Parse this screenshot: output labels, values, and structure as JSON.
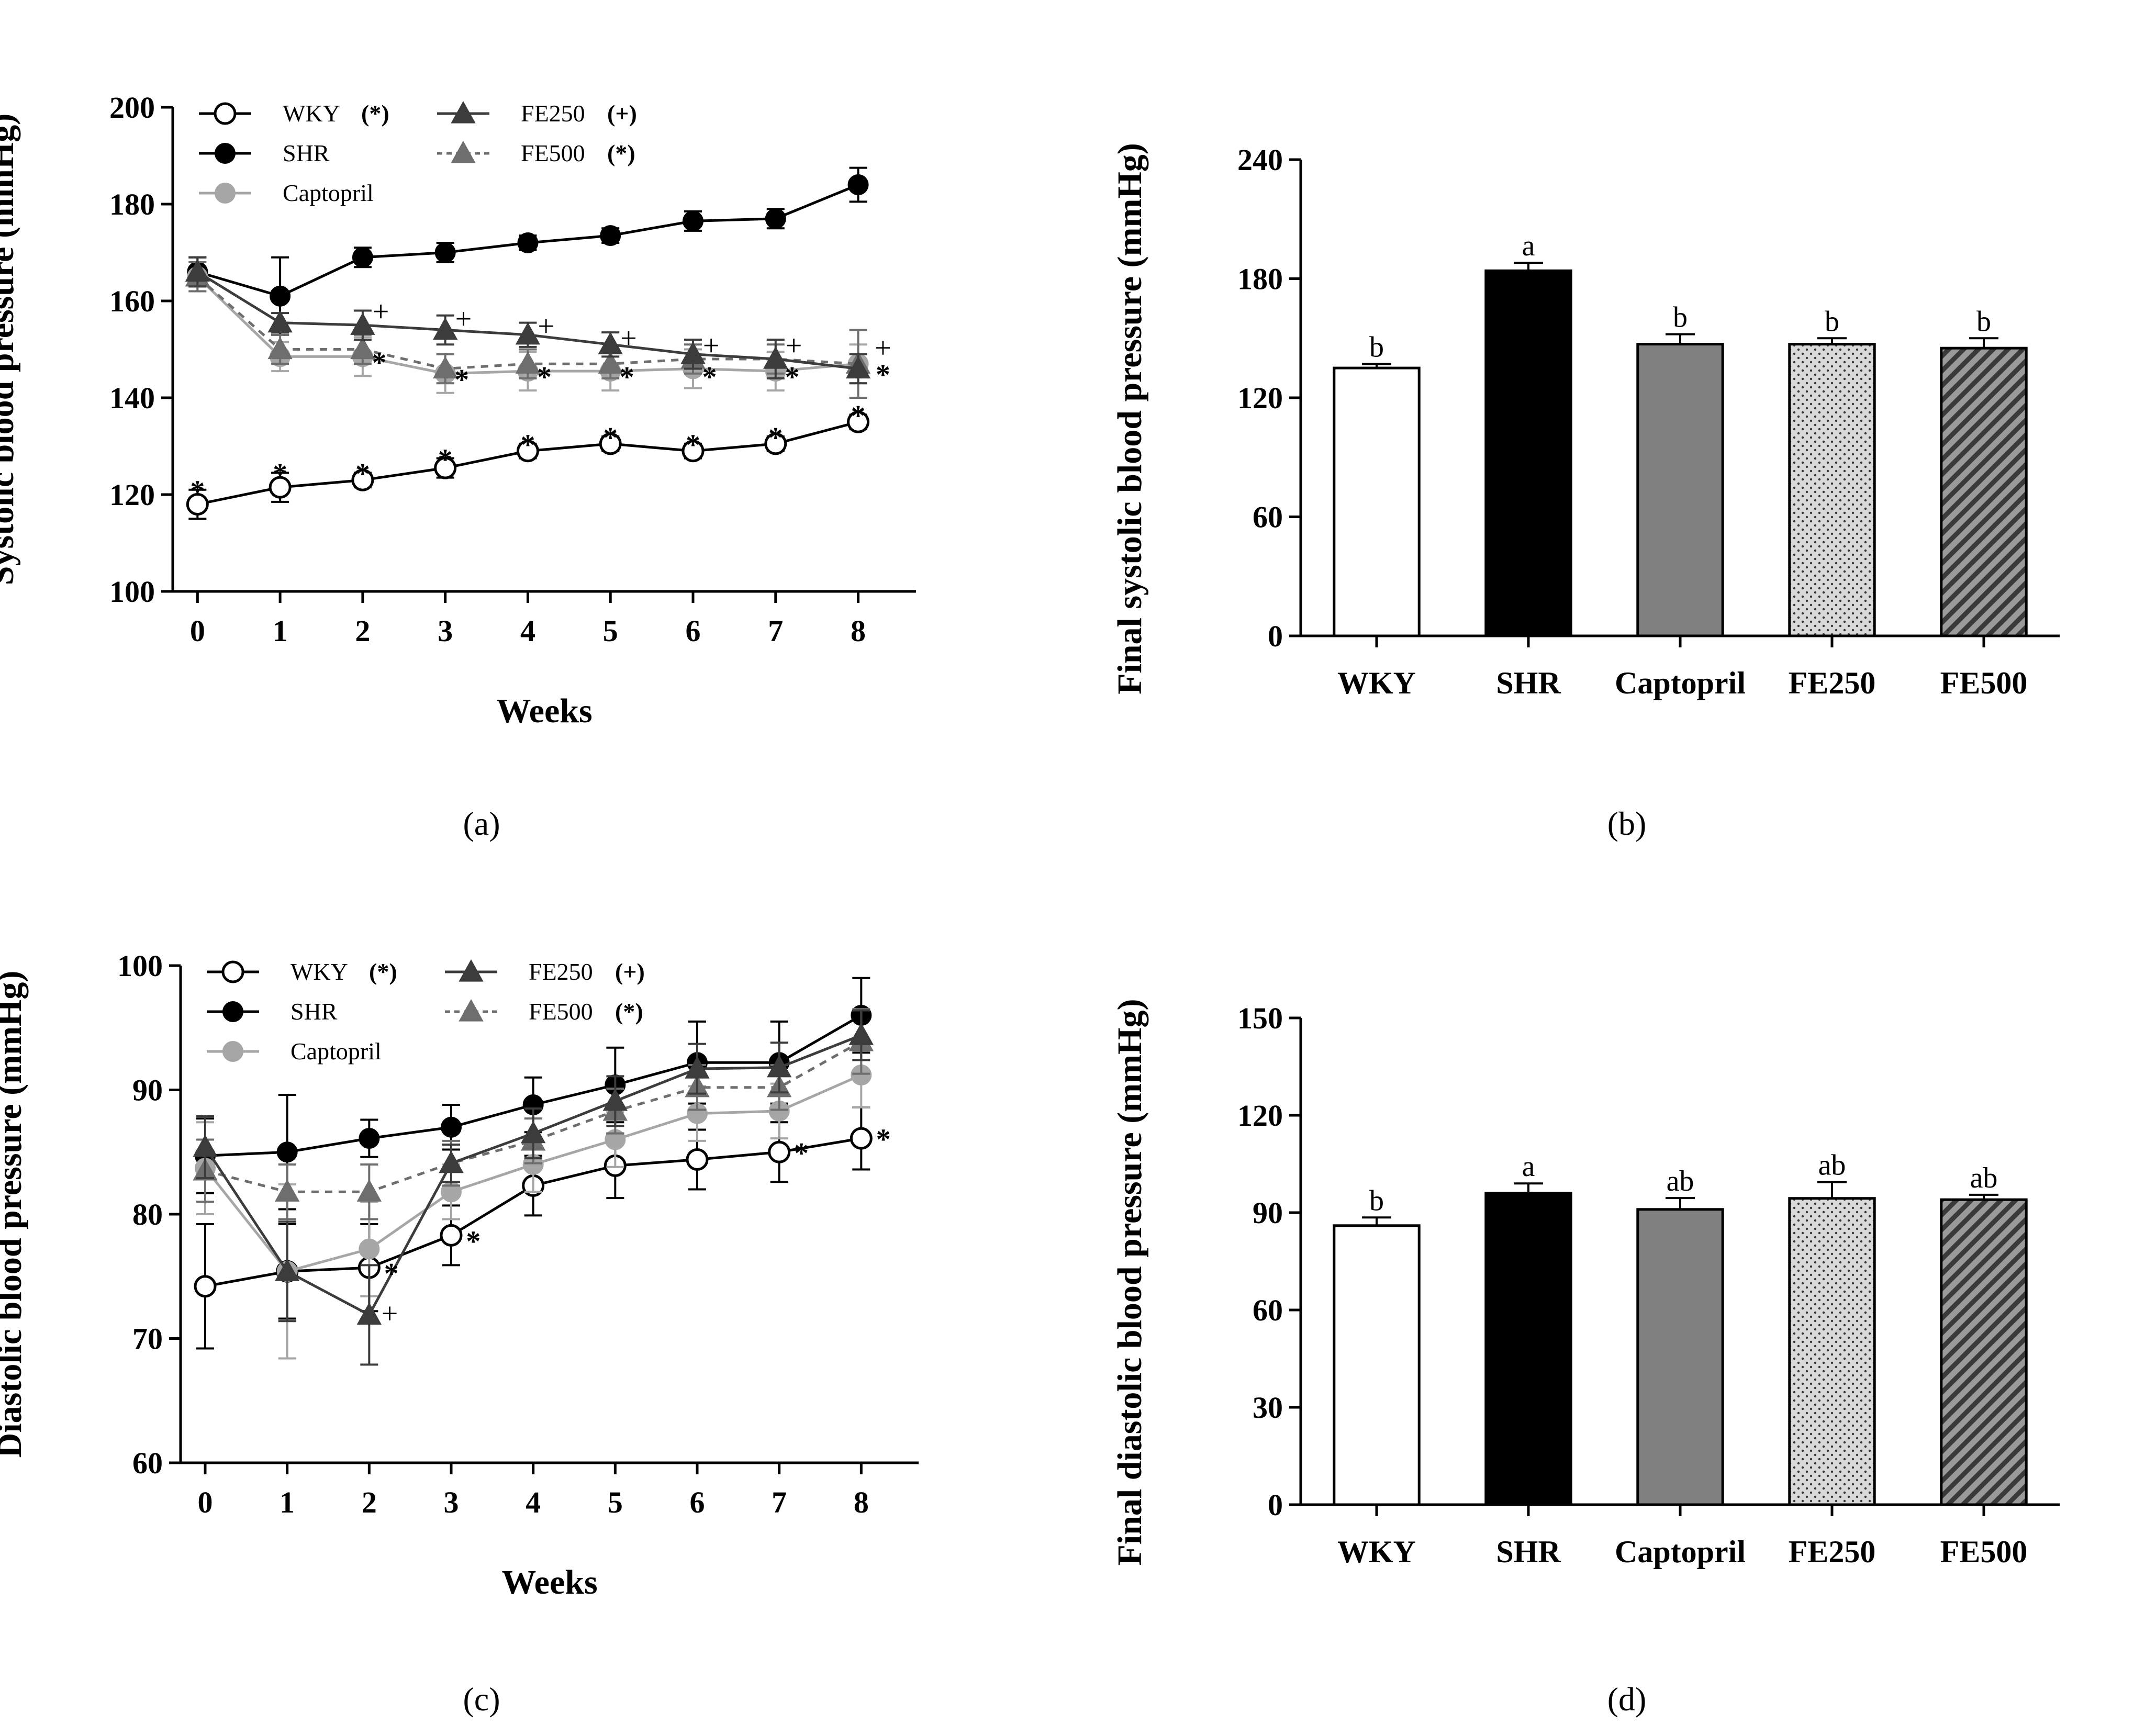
{
  "colors": {
    "WKY": "#000000",
    "SHR": "#000000",
    "Captopril": "#a6a6a6",
    "FE250": "#3c3c3c",
    "FE500": "#6e6e6e"
  },
  "chart_data": [
    {
      "panel": "a",
      "type": "line",
      "caption": "(a)",
      "xlabel": "Weeks",
      "ylabel": "Systolic blood pressure (mmHg)",
      "x": [
        0,
        1,
        2,
        3,
        4,
        5,
        6,
        7,
        8
      ],
      "xlim": [
        -0.3,
        8.7
      ],
      "ylim": [
        100,
        200
      ],
      "yticks": [
        100,
        120,
        140,
        160,
        180,
        200
      ],
      "grid": false,
      "legend_position": "top-left",
      "series": [
        {
          "name": "WKY",
          "key": "WKY",
          "legend_sig": "(*)",
          "marker": "circle-open",
          "dash": false,
          "values": [
            118,
            121.5,
            123,
            125.5,
            129,
            130.5,
            129,
            130.5,
            135
          ],
          "err": [
            3,
            3,
            1.5,
            2,
            1.5,
            1.5,
            1.5,
            1.5,
            1.5
          ]
        },
        {
          "name": "SHR",
          "key": "SHR",
          "legend_sig": "",
          "marker": "circle-filled",
          "dash": false,
          "values": [
            166,
            161,
            169,
            170,
            172,
            173.5,
            176.5,
            177,
            184
          ],
          "err": [
            3,
            8,
            2,
            2,
            1.5,
            1.5,
            2,
            2,
            3.5
          ]
        },
        {
          "name": "Captopril",
          "key": "Captopril",
          "legend_sig": "",
          "marker": "circle-filled",
          "dash": false,
          "values": [
            165,
            148.5,
            148.5,
            145,
            145.5,
            145.5,
            146,
            145.5,
            147
          ],
          "err": [
            3,
            3,
            4,
            4,
            4,
            4,
            4,
            4,
            4
          ]
        },
        {
          "name": "FE250",
          "key": "FE250",
          "legend_sig": "(+)",
          "marker": "triangle",
          "dash": false,
          "values": [
            166,
            155.5,
            155,
            154,
            153,
            151,
            149,
            148,
            146
          ],
          "err": [
            3,
            2,
            3,
            3,
            2.5,
            2.5,
            3,
            4,
            3
          ]
        },
        {
          "name": "FE500",
          "key": "FE500",
          "legend_sig": "(*)",
          "marker": "triangle",
          "dash": true,
          "values": [
            165,
            150,
            150,
            146,
            147,
            147,
            148,
            148,
            147
          ],
          "err": [
            3,
            3,
            3,
            3,
            3,
            3,
            3,
            3,
            7
          ]
        }
      ],
      "annotations": [
        {
          "symbol": "*",
          "series": "WKY",
          "x": 0,
          "y": 122,
          "dx": 0,
          "color": "#000000"
        },
        {
          "symbol": "*",
          "series": "WKY",
          "x": 1,
          "y": 125.5,
          "dx": 0,
          "color": "#000000"
        },
        {
          "symbol": "*",
          "series": "WKY",
          "x": 2,
          "y": 125.5,
          "dx": 0,
          "color": "#000000"
        },
        {
          "symbol": "*",
          "series": "WKY",
          "x": 3,
          "y": 128.5,
          "dx": 0,
          "color": "#000000"
        },
        {
          "symbol": "*",
          "series": "WKY",
          "x": 4,
          "y": 131.5,
          "dx": 0,
          "color": "#000000"
        },
        {
          "symbol": "*",
          "series": "WKY",
          "x": 5,
          "y": 133,
          "dx": 0,
          "color": "#000000"
        },
        {
          "symbol": "*",
          "series": "WKY",
          "x": 6,
          "y": 131.5,
          "dx": 0,
          "color": "#000000"
        },
        {
          "symbol": "*",
          "series": "WKY",
          "x": 7,
          "y": 133,
          "dx": 0,
          "color": "#000000"
        },
        {
          "symbol": "*",
          "series": "WKY",
          "x": 8,
          "y": 137.5,
          "dx": 0,
          "color": "#000000"
        },
        {
          "symbol": "+",
          "series": "FE250",
          "x": 2,
          "y": 157.5,
          "dx": 0.22,
          "color": "#000000"
        },
        {
          "symbol": "+",
          "series": "FE250",
          "x": 3,
          "y": 156,
          "dx": 0.22,
          "color": "#000000"
        },
        {
          "symbol": "+",
          "series": "FE250",
          "x": 4,
          "y": 154.5,
          "dx": 0.22,
          "color": "#000000"
        },
        {
          "symbol": "+",
          "series": "FE250",
          "x": 5,
          "y": 152,
          "dx": 0.22,
          "color": "#000000"
        },
        {
          "symbol": "+",
          "series": "FE250",
          "x": 6,
          "y": 150.5,
          "dx": 0.22,
          "color": "#000000"
        },
        {
          "symbol": "+",
          "series": "FE250",
          "x": 7,
          "y": 150.5,
          "dx": 0.22,
          "color": "#000000"
        },
        {
          "symbol": "+",
          "series": "FE250",
          "x": 8,
          "y": 150,
          "dx": 0.3,
          "color": "#000000"
        },
        {
          "symbol": "*",
          "series": "FE500",
          "x": 2,
          "y": 148.5,
          "dx": 0.2,
          "color": "#6e6e6e"
        },
        {
          "symbol": "*",
          "series": "FE500",
          "x": 3,
          "y": 145,
          "dx": 0.2,
          "color": "#6e6e6e"
        },
        {
          "symbol": "*",
          "series": "FE500",
          "x": 4,
          "y": 145.5,
          "dx": 0.2,
          "color": "#6e6e6e"
        },
        {
          "symbol": "*",
          "series": "FE500",
          "x": 5,
          "y": 145.5,
          "dx": 0.2,
          "color": "#6e6e6e"
        },
        {
          "symbol": "*",
          "series": "FE500",
          "x": 6,
          "y": 145.5,
          "dx": 0.2,
          "color": "#6e6e6e"
        },
        {
          "symbol": "*",
          "series": "FE500",
          "x": 7,
          "y": 145.5,
          "dx": 0.2,
          "color": "#6e6e6e"
        },
        {
          "symbol": "*",
          "series": "FE500",
          "x": 8,
          "y": 146,
          "dx": 0.3,
          "color": "#6e6e6e"
        }
      ]
    },
    {
      "panel": "b",
      "type": "bar",
      "caption": "(b)",
      "xlabel": "",
      "ylabel": "Final systolic blood pressure (mmHg)",
      "categories": [
        "WKY",
        "SHR",
        "Captopril",
        "FE250",
        "FE500"
      ],
      "values": [
        135,
        184,
        147,
        147,
        145
      ],
      "err": [
        2,
        4,
        5,
        3,
        5
      ],
      "letters": [
        "b",
        "a",
        "b",
        "b",
        "b"
      ],
      "fills": [
        "white",
        "black",
        "gray",
        "dots",
        "stripes"
      ],
      "ylim": [
        0,
        240
      ],
      "yticks": [
        0,
        60,
        120,
        180,
        240
      ],
      "grid": false
    },
    {
      "panel": "c",
      "type": "line",
      "caption": "(c)",
      "xlabel": "Weeks",
      "ylabel": "Diastolic blood pressure (mmHg)",
      "x": [
        0,
        1,
        2,
        3,
        4,
        5,
        6,
        7,
        8
      ],
      "xlim": [
        -0.3,
        8.7
      ],
      "ylim": [
        60,
        100
      ],
      "yticks": [
        60,
        70,
        80,
        90,
        100
      ],
      "grid": false,
      "legend_position": "top-left",
      "series": [
        {
          "name": "WKY",
          "key": "WKY",
          "legend_sig": "(*)",
          "marker": "circle-open",
          "dash": false,
          "values": [
            74.2,
            75.4,
            75.7,
            78.3,
            82.3,
            83.9,
            84.4,
            85,
            86.1
          ],
          "err": [
            5,
            3.8,
            3.5,
            2.4,
            2.4,
            2.6,
            2.4,
            2.4,
            2.5
          ]
        },
        {
          "name": "SHR",
          "key": "SHR",
          "legend_sig": "",
          "marker": "circle-filled",
          "dash": false,
          "values": [
            84.7,
            85,
            86.1,
            87,
            88.8,
            90.4,
            92.2,
            92.2,
            96
          ],
          "err": [
            3,
            4.6,
            1.5,
            1.8,
            2.2,
            3,
            3.3,
            3.3,
            3
          ]
        },
        {
          "name": "Captopril",
          "key": "Captopril",
          "legend_sig": "",
          "marker": "circle-filled",
          "dash": false,
          "values": [
            83.7,
            75.4,
            77.2,
            81.8,
            84,
            86,
            88.1,
            88.3,
            91.2
          ],
          "err": [
            3.7,
            7,
            3.8,
            2.2,
            2.2,
            2.2,
            2.2,
            2.2,
            2.6
          ]
        },
        {
          "name": "FE250",
          "key": "FE250",
          "legend_sig": "(+)",
          "marker": "triangle",
          "dash": false,
          "values": [
            85.4,
            75.4,
            71.9,
            84.1,
            86.5,
            89.1,
            91.7,
            91.8,
            94.4
          ],
          "err": [
            2.5,
            4,
            4,
            1.5,
            2,
            2,
            2,
            2,
            2
          ]
        },
        {
          "name": "FE500",
          "key": "FE500",
          "legend_sig": "(*)",
          "marker": "triangle",
          "dash": true,
          "values": [
            83.5,
            81.8,
            81.8,
            84.1,
            85.9,
            88.3,
            90.2,
            90.2,
            93.9
          ],
          "err": [
            2.5,
            2.2,
            2.2,
            1.8,
            1.8,
            1.8,
            1.8,
            1.8,
            2.6
          ]
        }
      ],
      "annotations": [
        {
          "symbol": "*",
          "series": "WKY",
          "x": 2,
          "y": 75.7,
          "dx": 0.27,
          "color": "#000000"
        },
        {
          "symbol": "*",
          "series": "WKY",
          "x": 3,
          "y": 78.3,
          "dx": 0.27,
          "color": "#000000"
        },
        {
          "symbol": "*",
          "series": "WKY",
          "x": 7,
          "y": 85.4,
          "dx": 0.27,
          "color": "#000000"
        },
        {
          "symbol": "*",
          "series": "WKY",
          "x": 8,
          "y": 86.5,
          "dx": 0.27,
          "color": "#000000"
        },
        {
          "symbol": "+",
          "series": "FE250",
          "x": 2,
          "y": 71.9,
          "dx": 0.25,
          "color": "#000000"
        }
      ]
    },
    {
      "panel": "d",
      "type": "bar",
      "caption": "(d)",
      "xlabel": "",
      "ylabel": "Final diastolic blood pressure (mmHg)",
      "categories": [
        "WKY",
        "SHR",
        "Captopril",
        "FE250",
        "FE500"
      ],
      "values": [
        86,
        96,
        91,
        94.4,
        94
      ],
      "err": [
        2.5,
        3,
        3.5,
        5,
        1.5
      ],
      "letters": [
        "b",
        "a",
        "ab",
        "ab",
        "ab"
      ],
      "fills": [
        "white",
        "black",
        "gray",
        "dots",
        "stripes"
      ],
      "ylim": [
        0,
        150
      ],
      "yticks": [
        0,
        30,
        60,
        90,
        120,
        150
      ],
      "grid": false
    }
  ]
}
